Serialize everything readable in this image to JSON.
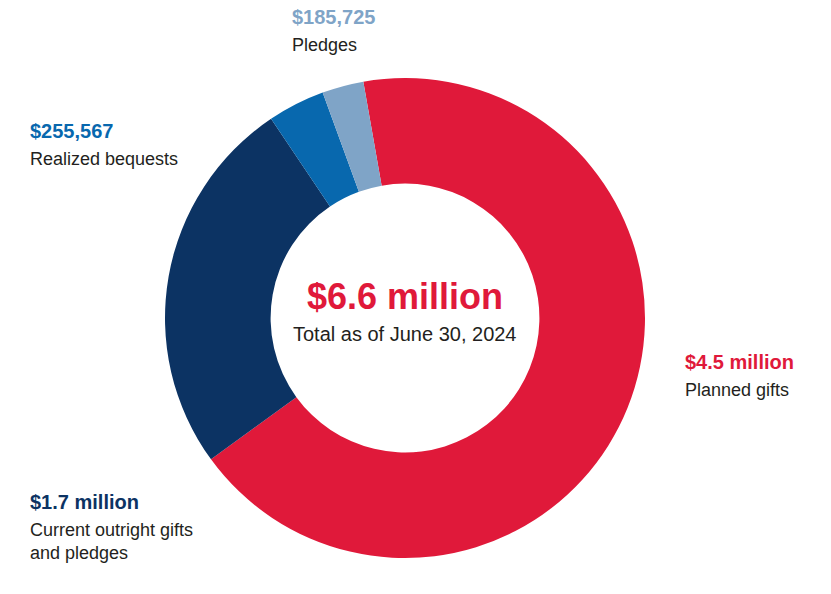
{
  "chart_data": {
    "type": "pie",
    "categories": [
      "Planned gifts",
      "Current outright gifts and pledges",
      "Realized bequests",
      "Pledges"
    ],
    "values": [
      4500000,
      1700000,
      255567,
      185725
    ],
    "value_labels": [
      "$4.5 million",
      "$1.7 million",
      "$255,567",
      "$185,725"
    ],
    "colors": [
      "#e0193a",
      "#0c3363",
      "#0868ae",
      "#7fa4c7"
    ],
    "data_labels": true,
    "annotations": [
      "$6.6 million",
      "Total as of June 30, 2024"
    ]
  }
}
